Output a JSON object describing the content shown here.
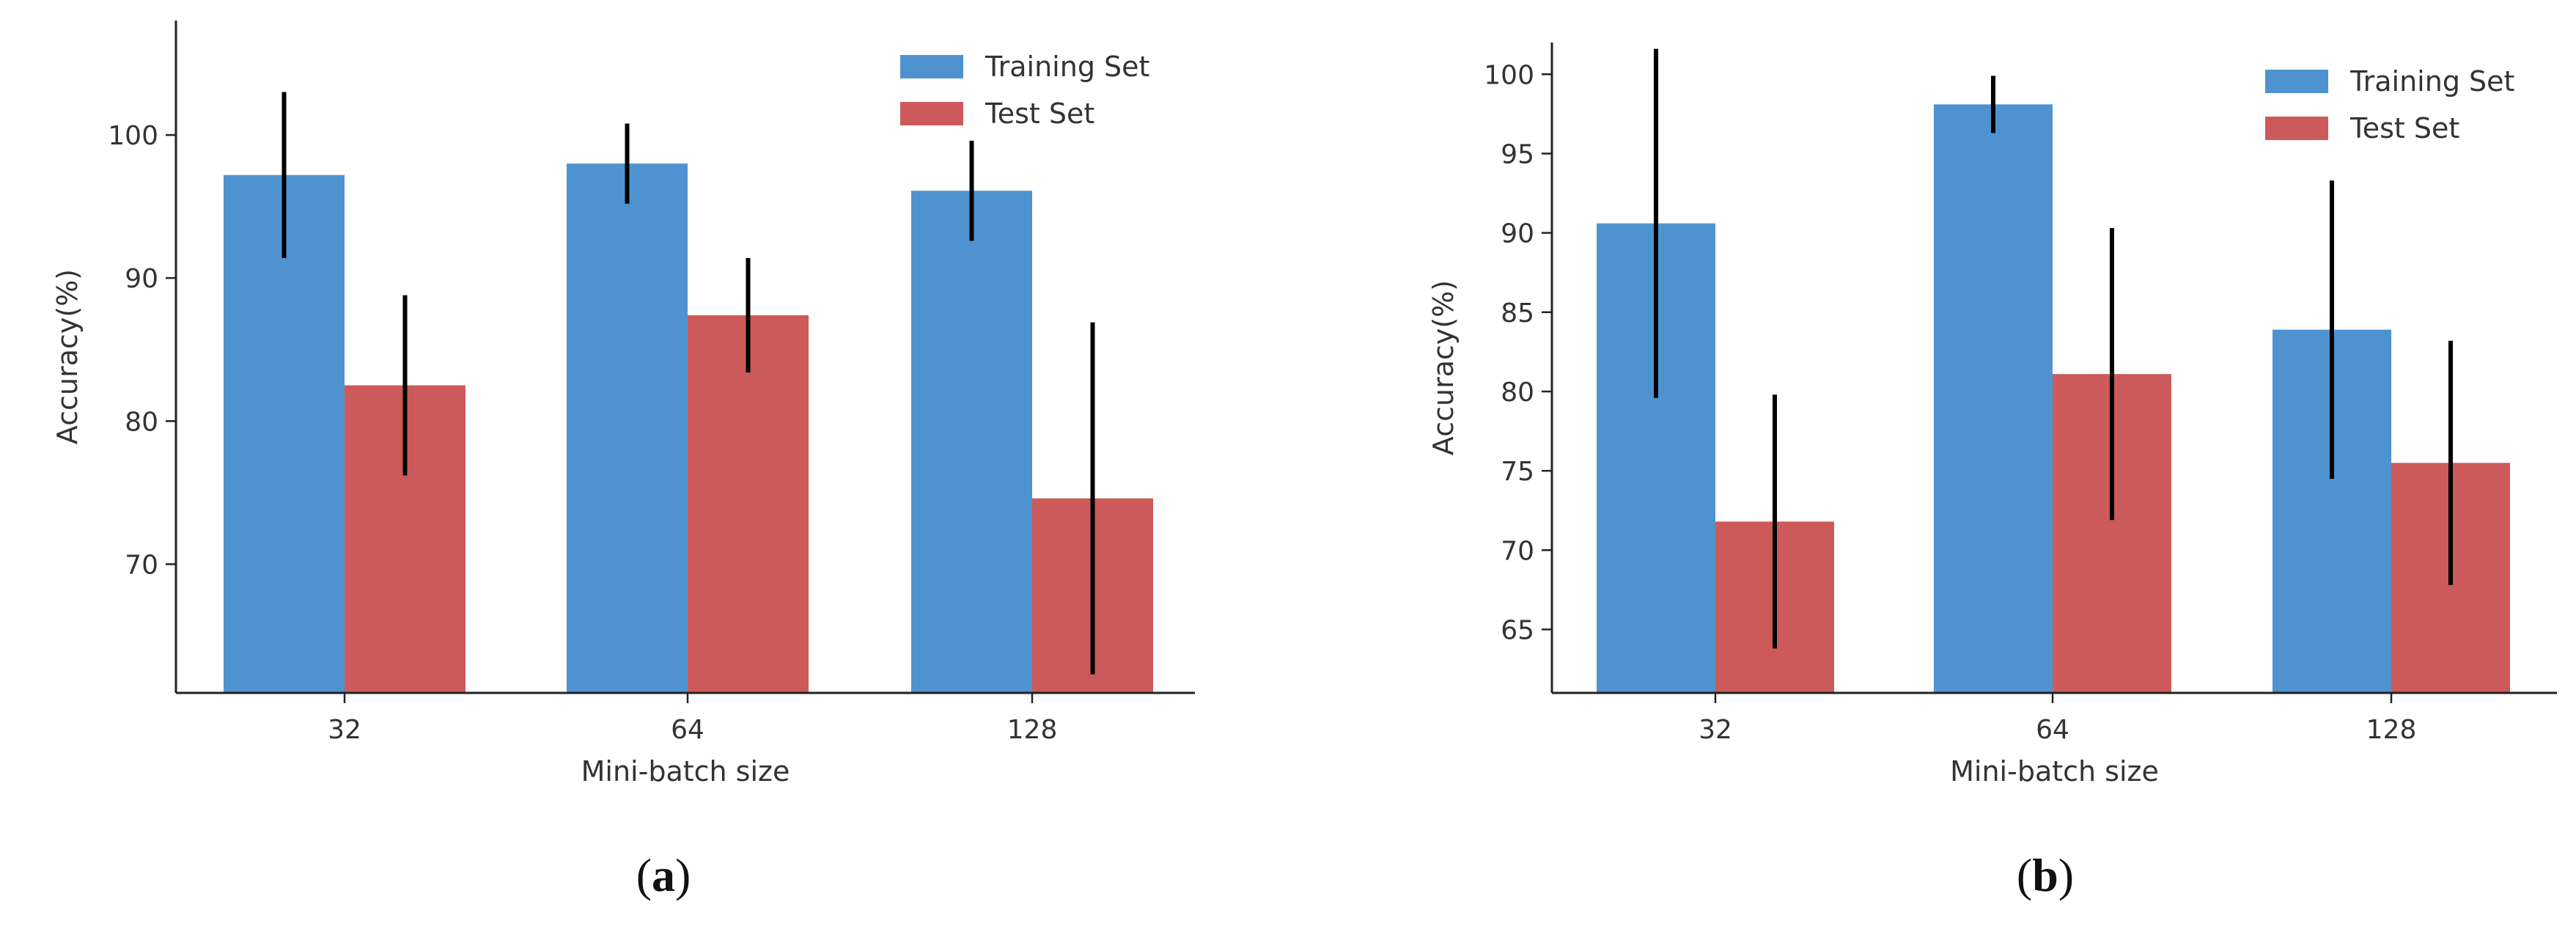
{
  "chart_data": [
    {
      "type": "bar",
      "panel": "a",
      "categories": [
        "32",
        "64",
        "128"
      ],
      "series": [
        {
          "name": "Training Set",
          "values": [
            97.2,
            98.0,
            96.1
          ],
          "errors": [
            5.8,
            2.8,
            3.5
          ]
        },
        {
          "name": "Test Set",
          "values": [
            82.5,
            87.4,
            74.6
          ],
          "errors": [
            6.3,
            4.0,
            12.3
          ]
        }
      ],
      "xlabel": "Mini-batch size",
      "ylabel": "Accuracy(%)",
      "ylim": [
        61,
        108
      ],
      "yticks": [
        70,
        80,
        90,
        100
      ],
      "grid": false,
      "legend_position": "top-right"
    },
    {
      "type": "bar",
      "panel": "b",
      "categories": [
        "32",
        "64",
        "128"
      ],
      "series": [
        {
          "name": "Training Set",
          "values": [
            90.6,
            98.1,
            83.9
          ],
          "errors": [
            11.0,
            1.8,
            9.4
          ]
        },
        {
          "name": "Test Set",
          "values": [
            71.8,
            81.1,
            75.5
          ],
          "errors": [
            8.0,
            9.2,
            7.7
          ]
        }
      ],
      "xlabel": "Mini-batch size",
      "ylabel": "Accuracy(%)",
      "ylim": [
        61,
        102
      ],
      "yticks": [
        65,
        70,
        75,
        80,
        85,
        90,
        95,
        100
      ],
      "grid": false,
      "legend_position": "top-right"
    }
  ],
  "captions": {
    "a": {
      "open": "(",
      "letter": "a",
      "close": ")"
    },
    "b": {
      "open": "(",
      "letter": "b",
      "close": ")"
    }
  },
  "colors": {
    "training": "#4e93d0",
    "test": "#cd5a5a"
  }
}
